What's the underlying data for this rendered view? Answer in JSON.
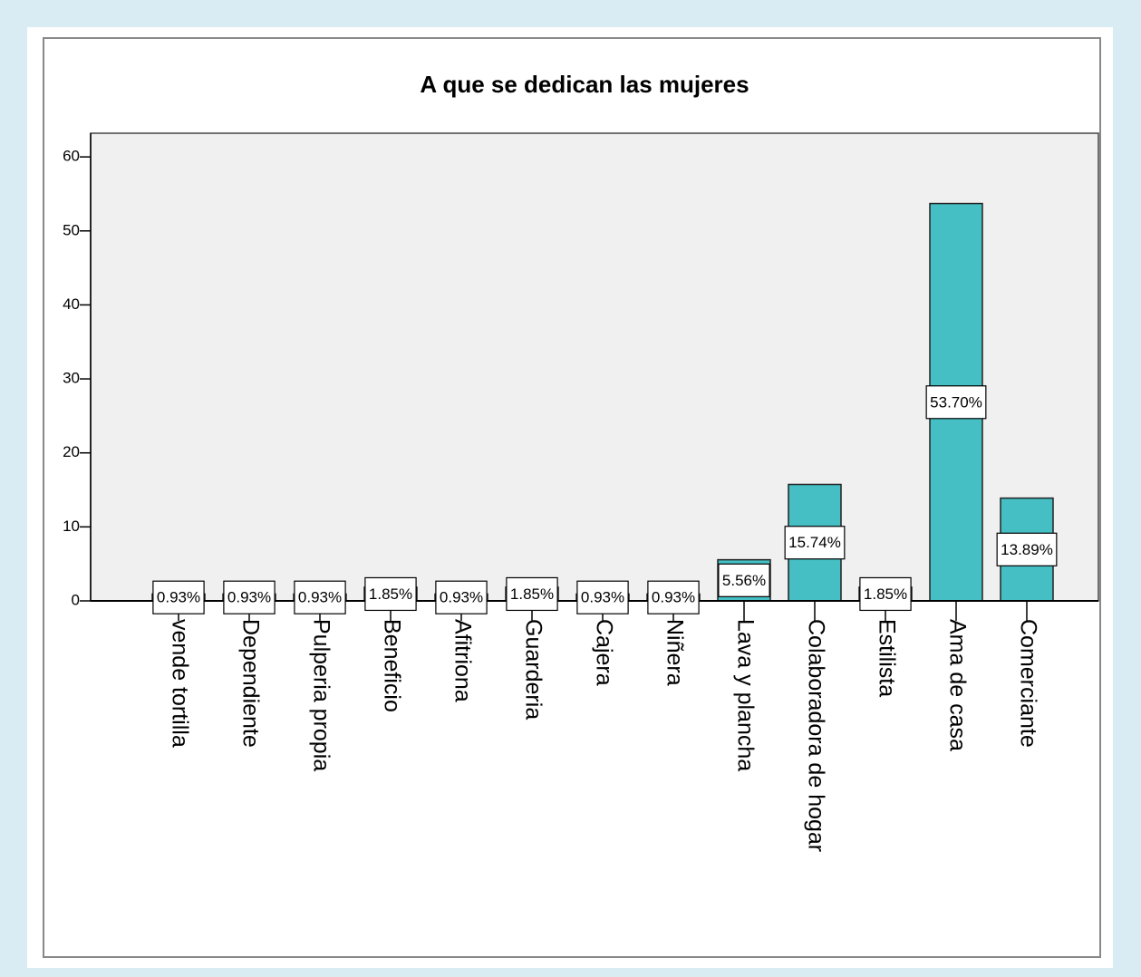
{
  "chart_data": {
    "type": "bar",
    "title": "A que  se dedican las mujeres",
    "categories": [
      "vende tortilla",
      "Dependiente",
      "Pulperia propia",
      "Beneficio",
      "Afitriona",
      "Guarderia",
      "Cajera",
      "Niñera",
      "Lava y plancha",
      "Colaboradora de hogar",
      "Estilista",
      "Ama de casa",
      "Comerciante"
    ],
    "values": [
      0.93,
      0.93,
      0.93,
      1.85,
      0.93,
      1.85,
      0.93,
      0.93,
      5.56,
      15.74,
      1.85,
      53.7,
      13.89
    ],
    "value_labels": [
      "0.93%",
      "0.93%",
      "0.93%",
      "1.85%",
      "0.93%",
      "1.85%",
      "0.93%",
      "0.93%",
      "5.56%",
      "15.74%",
      "1.85%",
      "53.70%",
      "13.89%"
    ],
    "color": "#45bfc3",
    "ylim": [
      0,
      63.2
    ],
    "yticks": [
      0,
      10,
      20,
      30,
      40,
      50,
      60
    ],
    "grid": false
  }
}
